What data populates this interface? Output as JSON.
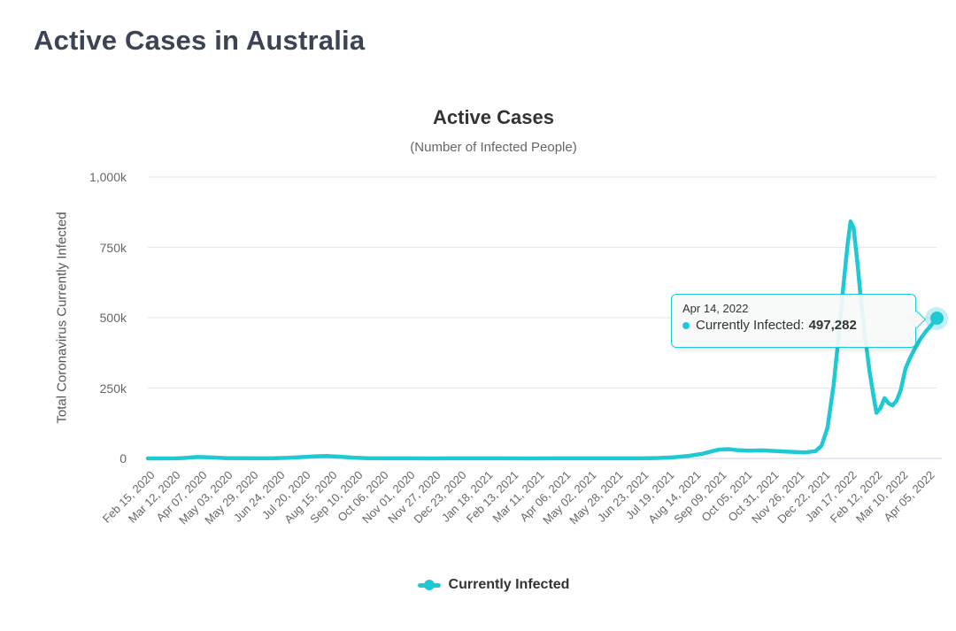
{
  "page": {
    "title": "Active Cases in Australia"
  },
  "tooltip": {
    "date": "Apr 14, 2022",
    "series_label": "Currently Infected:",
    "value": "497,282"
  },
  "chart_data": {
    "type": "line",
    "title": "Active Cases",
    "subtitle": "(Number of Infected People)",
    "xlabel": "",
    "ylabel": "Total Coronavirus Currently Infected",
    "ylim": [
      0,
      1000000
    ],
    "grid": "horizontal",
    "legend_position": "bottom",
    "colors": {
      "line": "#1ec9d4",
      "halo": "rgba(30,201,212,0.28)",
      "grid": "#e6e6e6",
      "axis_line": "#ccd6eb",
      "tick_text": "#666666",
      "title_text": "#333333",
      "subtitle_text": "#666666",
      "page_title_text": "#3c4454",
      "tooltip_border": "#1ec9d4"
    },
    "y_ticks": [
      {
        "value": 0,
        "label": "0"
      },
      {
        "value": 250000,
        "label": "250k"
      },
      {
        "value": 500000,
        "label": "500k"
      },
      {
        "value": 750000,
        "label": "750k"
      },
      {
        "value": 1000000,
        "label": "1,000k"
      }
    ],
    "x_ticks": [
      "Feb 15, 2020",
      "Mar 12, 2020",
      "Apr 07, 2020",
      "May 03, 2020",
      "May 29, 2020",
      "Jun 24, 2020",
      "Jul 20, 2020",
      "Aug 15, 2020",
      "Sep 10, 2020",
      "Oct 06, 2020",
      "Nov 01, 2020",
      "Nov 27, 2020",
      "Dec 23, 2020",
      "Jan 18, 2021",
      "Feb 13, 2021",
      "Mar 11, 2021",
      "Apr 06, 2021",
      "May 02, 2021",
      "May 28, 2021",
      "Jun 23, 2021",
      "Jul 19, 2021",
      "Aug 14, 2021",
      "Sep 09, 2021",
      "Oct 05, 2021",
      "Oct 31, 2021",
      "Nov 26, 2021",
      "Dec 22, 2021",
      "Jan 17, 2022",
      "Feb 12, 2022",
      "Mar 10, 2022",
      "Apr 05, 2022"
    ],
    "x_tick_interval_days": 26,
    "series": [
      {
        "name": "Currently Infected",
        "color": "#1ec9d4",
        "points": [
          [
            "2020-02-15",
            5
          ],
          [
            "2020-03-01",
            30
          ],
          [
            "2020-03-14",
            250
          ],
          [
            "2020-03-22",
            1600
          ],
          [
            "2020-03-29",
            3600
          ],
          [
            "2020-04-05",
            4900
          ],
          [
            "2020-04-13",
            4400
          ],
          [
            "2020-04-22",
            3000
          ],
          [
            "2020-05-02",
            1400
          ],
          [
            "2020-05-15",
            600
          ],
          [
            "2020-06-01",
            450
          ],
          [
            "2020-06-20",
            500
          ],
          [
            "2020-07-05",
            2200
          ],
          [
            "2020-07-18",
            4800
          ],
          [
            "2020-08-01",
            7500
          ],
          [
            "2020-08-12",
            8600
          ],
          [
            "2020-08-24",
            6200
          ],
          [
            "2020-09-08",
            2700
          ],
          [
            "2020-09-22",
            1100
          ],
          [
            "2020-10-10",
            450
          ],
          [
            "2020-11-01",
            200
          ],
          [
            "2020-11-25",
            130
          ],
          [
            "2020-12-20",
            300
          ],
          [
            "2021-01-10",
            350
          ],
          [
            "2021-02-01",
            180
          ],
          [
            "2021-03-01",
            140
          ],
          [
            "2021-04-01",
            170
          ],
          [
            "2021-05-01",
            160
          ],
          [
            "2021-06-01",
            250
          ],
          [
            "2021-06-25",
            400
          ],
          [
            "2021-07-10",
            1600
          ],
          [
            "2021-07-25",
            4000
          ],
          [
            "2021-08-08",
            8500
          ],
          [
            "2021-08-22",
            16000
          ],
          [
            "2021-09-08",
            31000
          ],
          [
            "2021-09-18",
            33000
          ],
          [
            "2021-09-28",
            29000
          ],
          [
            "2021-10-08",
            27500
          ],
          [
            "2021-10-22",
            28500
          ],
          [
            "2021-11-05",
            26000
          ],
          [
            "2021-11-19",
            23500
          ],
          [
            "2021-12-03",
            21000
          ],
          [
            "2021-12-14",
            26000
          ],
          [
            "2021-12-20",
            45000
          ],
          [
            "2021-12-26",
            110000
          ],
          [
            "2022-01-01",
            260000
          ],
          [
            "2022-01-06",
            430000
          ],
          [
            "2022-01-11",
            620000
          ],
          [
            "2022-01-15",
            760000
          ],
          [
            "2022-01-18",
            842000
          ],
          [
            "2022-01-21",
            820000
          ],
          [
            "2022-01-25",
            690000
          ],
          [
            "2022-01-29",
            540000
          ],
          [
            "2022-02-02",
            420000
          ],
          [
            "2022-02-06",
            310000
          ],
          [
            "2022-02-10",
            220000
          ],
          [
            "2022-02-13",
            162000
          ],
          [
            "2022-02-17",
            180000
          ],
          [
            "2022-02-21",
            214000
          ],
          [
            "2022-02-25",
            196000
          ],
          [
            "2022-03-01",
            188000
          ],
          [
            "2022-03-05",
            205000
          ],
          [
            "2022-03-09",
            240000
          ],
          [
            "2022-03-14",
            320000
          ],
          [
            "2022-03-19",
            360000
          ],
          [
            "2022-03-24",
            395000
          ],
          [
            "2022-03-29",
            425000
          ],
          [
            "2022-04-03",
            450000
          ],
          [
            "2022-04-08",
            470000
          ],
          [
            "2022-04-14",
            497282
          ]
        ]
      }
    ],
    "highlight_point": {
      "date": "Apr 14, 2022",
      "value": 497282
    }
  }
}
